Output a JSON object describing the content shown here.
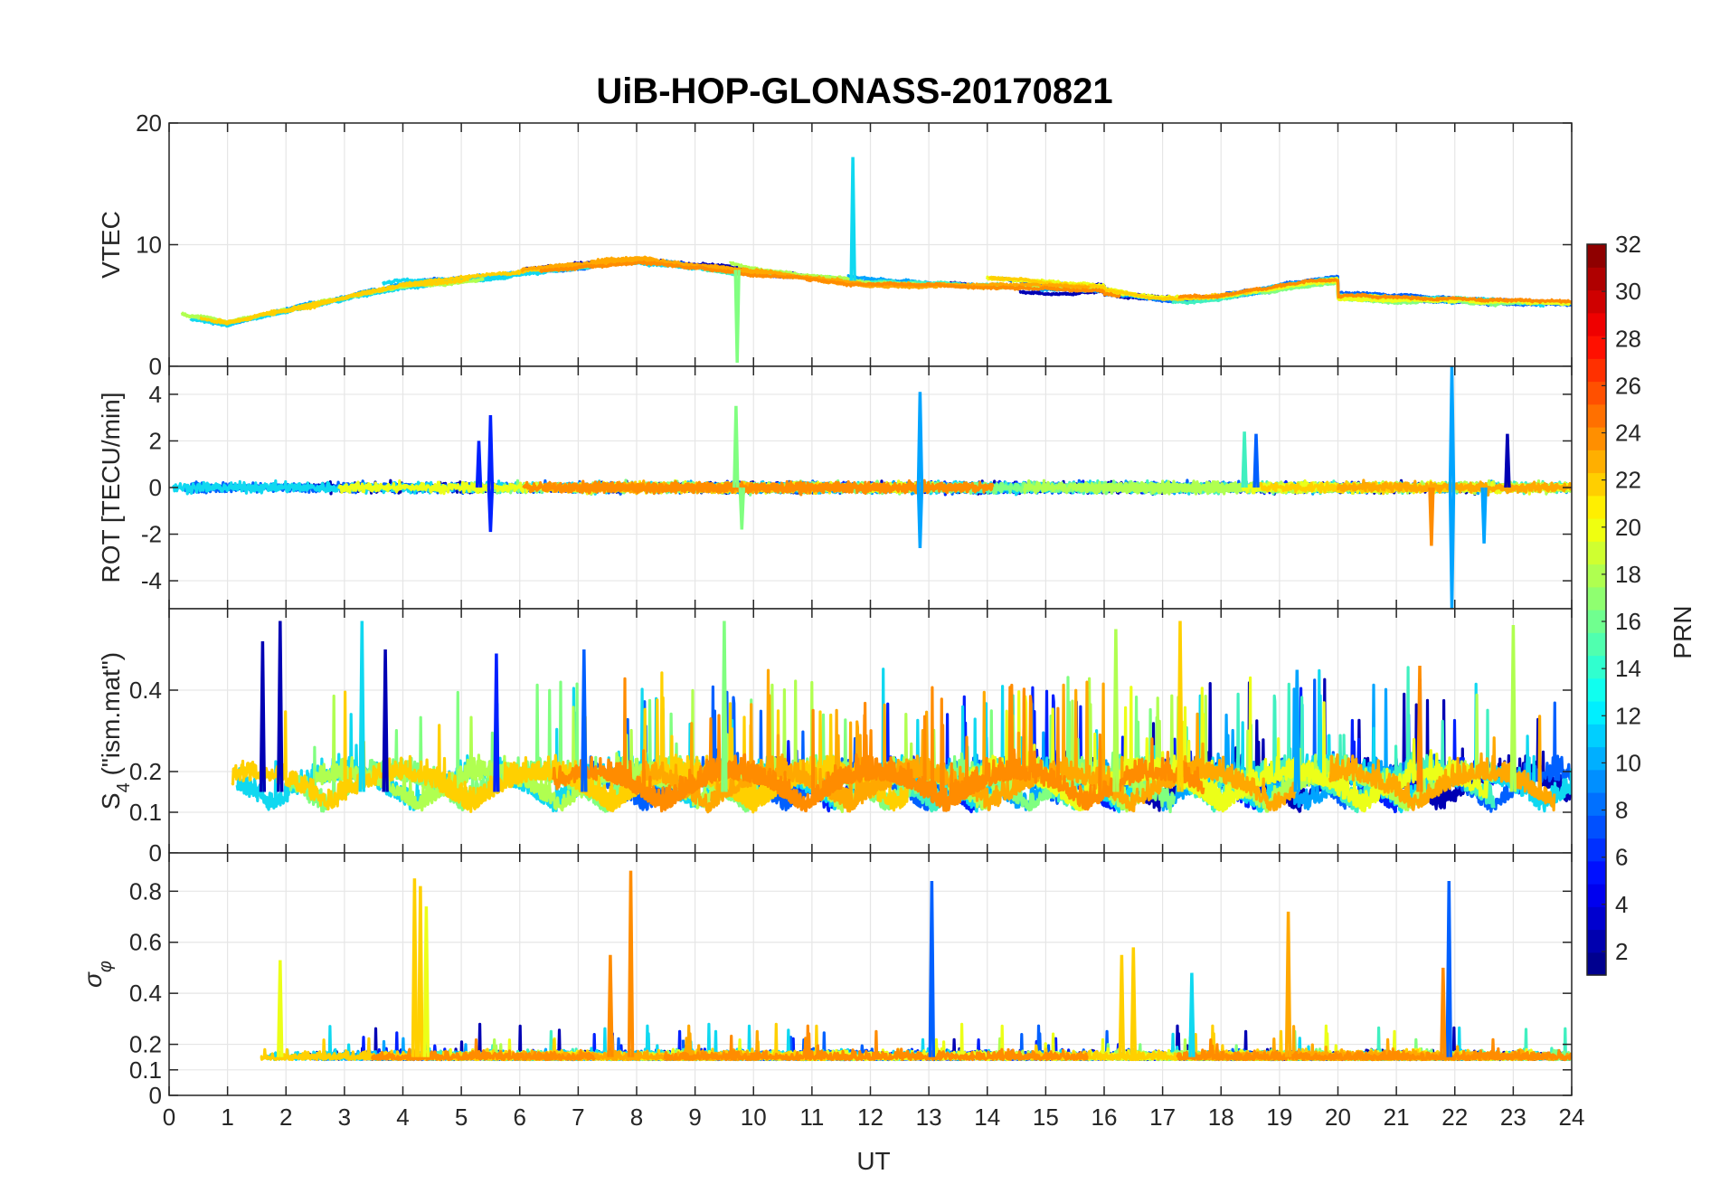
{
  "chart_data": {
    "type": "line",
    "title": "UiB-HOP-GLONASS-20170821",
    "x_axis": {
      "label": "UT",
      "range": [
        0,
        24
      ],
      "ticks": [
        0,
        1,
        2,
        3,
        4,
        5,
        6,
        7,
        8,
        9,
        10,
        11,
        12,
        13,
        14,
        15,
        16,
        17,
        18,
        19,
        20,
        21,
        22,
        23,
        24
      ]
    },
    "grid": true,
    "panels": [
      {
        "id": "vtec",
        "ylabel": "VTEC",
        "ylim": [
          0,
          20
        ],
        "yticks": [
          0,
          10,
          20
        ],
        "series_summary": "VTEC curves per satellite; baseline ~3-5 TECU early, rising to ~6-9 TECU after 4 UT; spike to ~17 TECU near 11.7 UT; dip to ~0 near 9.7 UT"
      },
      {
        "id": "rot",
        "ylabel": "ROT [TECU/min]",
        "ylim": [
          -5.2,
          5.2
        ],
        "yticks": [
          -4,
          -2,
          0,
          2,
          4
        ],
        "series_summary": "Rate of TEC fluctuating near 0 with spikes: ~3 at 5.5 UT, ~4 at 12.8 UT, ~3.5 at 9.7 UT, up to ~5 and -5 near 21.9 UT"
      },
      {
        "id": "s4",
        "ylabel": "S4 (\"ism.mat\")",
        "ylabel_main": "S",
        "ylabel_sub": "4",
        "ylabel_rest": " (\"ism.mat\")",
        "ylim": [
          0,
          0.6
        ],
        "yticks": [
          0,
          0.1,
          0.2,
          0.4
        ],
        "series_summary": "Amplitude scintillation index mostly 0.05-0.3 with peaks up to ~0.58"
      },
      {
        "id": "sigma_phi",
        "ylabel": "σφ",
        "ylabel_main": "σ",
        "ylabel_sub": "φ",
        "ylim": [
          0,
          0.95
        ],
        "yticks": [
          0,
          0.1,
          0.2,
          0.4,
          0.6,
          0.8
        ],
        "series_summary": "Phase scintillation index baseline ~0.1-0.2 with spikes ~0.85 at 4.2 UT, ~0.88 at 7.9 UT, ~0.84 at 13.1 UT, ~0.72 at 19.1 UT, ~0.84 at 21.9 UT"
      }
    ],
    "colorbar": {
      "label": "PRN",
      "range": [
        1,
        32
      ],
      "ticks": [
        2,
        4,
        6,
        8,
        10,
        12,
        14,
        16,
        18,
        20,
        22,
        24,
        26,
        28,
        30,
        32
      ],
      "colormap": "jet"
    },
    "series": [
      {
        "name": "PRN 2",
        "prn": 2,
        "color": "#0000b4"
      },
      {
        "name": "PRN 4",
        "prn": 4,
        "color": "#0020ff"
      },
      {
        "name": "PRN 6",
        "prn": 6,
        "color": "#0060ff"
      },
      {
        "name": "PRN 9",
        "prn": 9,
        "color": "#00a4ff"
      },
      {
        "name": "PRN 11",
        "prn": 11,
        "color": "#10d8f0"
      },
      {
        "name": "PRN 13",
        "prn": 13,
        "color": "#40f0c0"
      },
      {
        "name": "PRN 15",
        "prn": 15,
        "color": "#80ff80"
      },
      {
        "name": "PRN 17",
        "prn": 17,
        "color": "#b0ff50"
      },
      {
        "name": "PRN 19",
        "prn": 19,
        "color": "#ecff18"
      },
      {
        "name": "PRN 21",
        "prn": 21,
        "color": "#ffd000"
      },
      {
        "name": "PRN 23",
        "prn": 23,
        "color": "#ffa800"
      },
      {
        "name": "PRN 24",
        "prn": 24,
        "color": "#ff8c00"
      }
    ]
  }
}
